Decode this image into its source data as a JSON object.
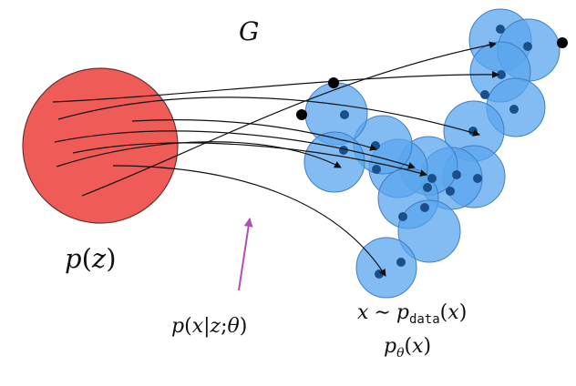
{
  "labels": {
    "generator": "G",
    "prior_p": "p",
    "prior_open": "(",
    "prior_var": "z",
    "prior_close": ")",
    "likelihood_p": "p",
    "likelihood_open": "(",
    "likelihood_x": "x",
    "likelihood_bar": "|",
    "likelihood_z": "z",
    "likelihood_semi": ";",
    "likelihood_theta": "θ",
    "likelihood_close": ")",
    "sample_x": "x",
    "sample_sim": "∼",
    "sample_p": "p",
    "sample_sub": "data",
    "sample_open": "(",
    "sample_var": "x",
    "sample_close": ")",
    "model_p": "p",
    "model_sub": "θ",
    "model_open": "(",
    "model_var": "x",
    "model_close": ")"
  },
  "colors": {
    "prior_fill": "#ef5b57",
    "prior_stroke": "#6a3232",
    "blob_fill": "#5aa6ee",
    "blob_stroke": "#3f7fc4",
    "dot": "#1b4f8a",
    "generated_point": "#000000",
    "arrow": "#111111",
    "likelihood_arrow": "#b14fb5"
  }
}
